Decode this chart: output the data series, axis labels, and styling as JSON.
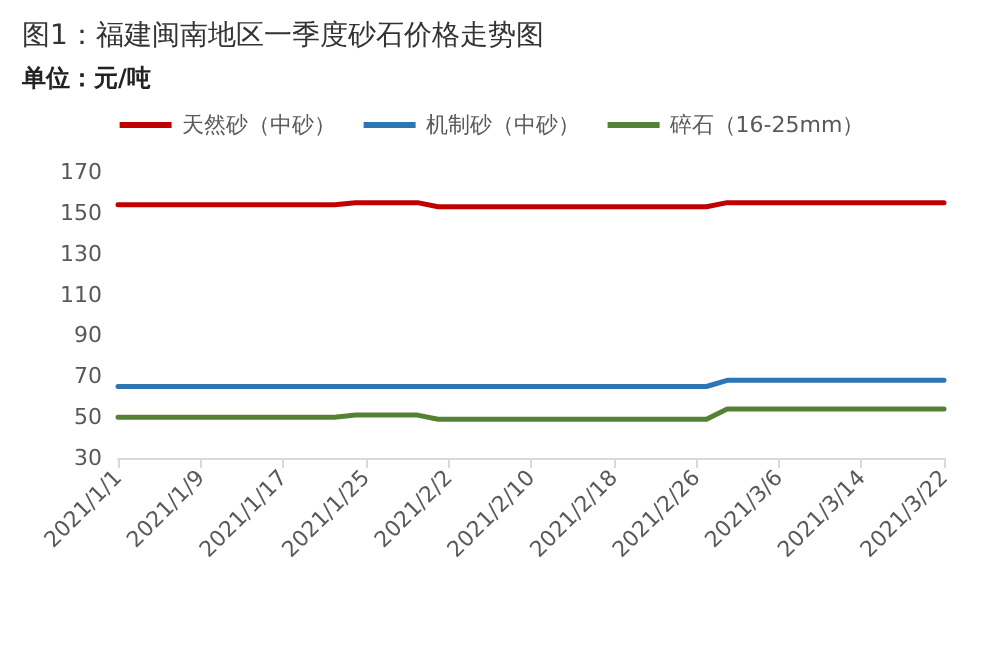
{
  "chart_data": {
    "type": "line",
    "title": "图1：福建闽南地区一季度砂石价格走势图",
    "ylabel": "单位：元/吨",
    "x": [
      "2021-01-01",
      "2021-01-22",
      "2021-01-24",
      "2021-01-30",
      "2021-02-01",
      "2021-02-27",
      "2021-03-01",
      "2021-03-22"
    ],
    "series": [
      {
        "name": "天然砂（中砂）",
        "color": "#c00000",
        "values": [
          154,
          154,
          155,
          155,
          153,
          153,
          155,
          155
        ]
      },
      {
        "name": "机制砂（中砂）",
        "color": "#2e75b6",
        "values": [
          65,
          65,
          65,
          65,
          65,
          65,
          68,
          68
        ]
      },
      {
        "name": "碎石（16-25mm）",
        "color": "#548235",
        "values": [
          50,
          50,
          51,
          51,
          49,
          49,
          54,
          54
        ]
      }
    ],
    "xlim": [
      "2021-01-01",
      "2021-03-22"
    ],
    "xticks": [
      {
        "value": "2021-01-01",
        "label": "2021/1/1"
      },
      {
        "value": "2021-01-09",
        "label": "2021/1/9"
      },
      {
        "value": "2021-01-17",
        "label": "2021/1/17"
      },
      {
        "value": "2021-01-25",
        "label": "2021/1/25"
      },
      {
        "value": "2021-02-02",
        "label": "2021/2/2"
      },
      {
        "value": "2021-02-10",
        "label": "2021/2/10"
      },
      {
        "value": "2021-02-18",
        "label": "2021/2/18"
      },
      {
        "value": "2021-02-26",
        "label": "2021/2/26"
      },
      {
        "value": "2021-03-06",
        "label": "2021/3/6"
      },
      {
        "value": "2021-03-14",
        "label": "2021/3/14"
      },
      {
        "value": "2021-03-22",
        "label": "2021/3/22"
      }
    ],
    "ylim": [
      30,
      170
    ],
    "yticks": [
      30,
      50,
      70,
      90,
      110,
      130,
      150,
      170
    ],
    "legend": "top",
    "grid": false,
    "marker": "none",
    "line_style": "solid"
  }
}
